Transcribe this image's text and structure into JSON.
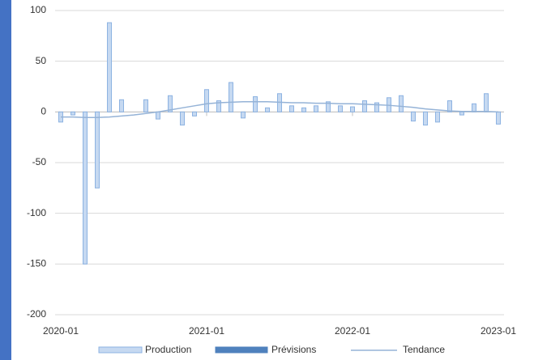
{
  "chart_data": {
    "type": "bar",
    "categories": [
      "2020-01",
      null,
      null,
      null,
      null,
      null,
      null,
      null,
      null,
      null,
      null,
      null,
      "2021-01",
      null,
      null,
      null,
      null,
      null,
      null,
      null,
      null,
      null,
      null,
      null,
      "2022-01",
      null,
      null,
      null,
      null,
      null,
      null,
      null,
      null,
      null,
      null,
      null,
      "2023-01"
    ],
    "series": [
      {
        "name": "Production",
        "type": "bar",
        "color": "#c6d9f1",
        "values": [
          -10,
          -3,
          -150,
          -75,
          88,
          12,
          0,
          12,
          -7,
          16,
          -13,
          -4,
          22,
          11,
          29,
          -6,
          15,
          4,
          18,
          6,
          4,
          6,
          10,
          6,
          5,
          11,
          9,
          14,
          16,
          -9,
          -13,
          -10,
          11,
          -3,
          8,
          18,
          -12
        ]
      },
      {
        "name": "Prévisions",
        "type": "bar",
        "color": "#4f81bd",
        "values": [
          null,
          null,
          null,
          null,
          null,
          null,
          null,
          null,
          null,
          null,
          null,
          null,
          null,
          null,
          null,
          null,
          null,
          null,
          null,
          null,
          null,
          null,
          null,
          null,
          null,
          null,
          null,
          null,
          null,
          null,
          null,
          null,
          null,
          null,
          null,
          null,
          null
        ]
      },
      {
        "name": "Tendance",
        "type": "line",
        "color": "#95b3d7",
        "values": [
          -5,
          -5,
          -5.5,
          -5.5,
          -5,
          -4,
          -3,
          -1.5,
          0,
          2,
          4,
          6,
          8,
          9,
          9.5,
          10,
          10,
          10,
          9.5,
          9,
          9,
          8.5,
          8.5,
          8,
          8,
          7.5,
          7,
          6.5,
          5.5,
          4.5,
          3,
          2,
          1,
          0.5,
          0.5,
          0.5,
          0
        ]
      }
    ],
    "ylim": [
      -200,
      100
    ],
    "yticks": [
      -200,
      -150,
      -100,
      -50,
      0,
      50,
      100
    ],
    "grid": true,
    "legend": "bottom"
  }
}
